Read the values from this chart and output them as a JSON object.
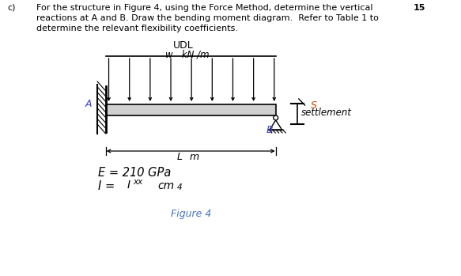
{
  "bg_color": "#ffffff",
  "text_color": "#000000",
  "question_label": "c)",
  "question_text_line1": "For the structure in Figure 4, using the Force Method, determine the vertical",
  "question_text_line2": "reactions at A and B. Draw the bending moment diagram.  Refer to Table 1 to",
  "question_text_line3": "determine the relevant flexibility coefficients.",
  "marks": "15",
  "fig_label": "Figure 4",
  "fig_label_color": "#4472c4",
  "S_color": "#cc4400",
  "B_color": "#4444cc"
}
